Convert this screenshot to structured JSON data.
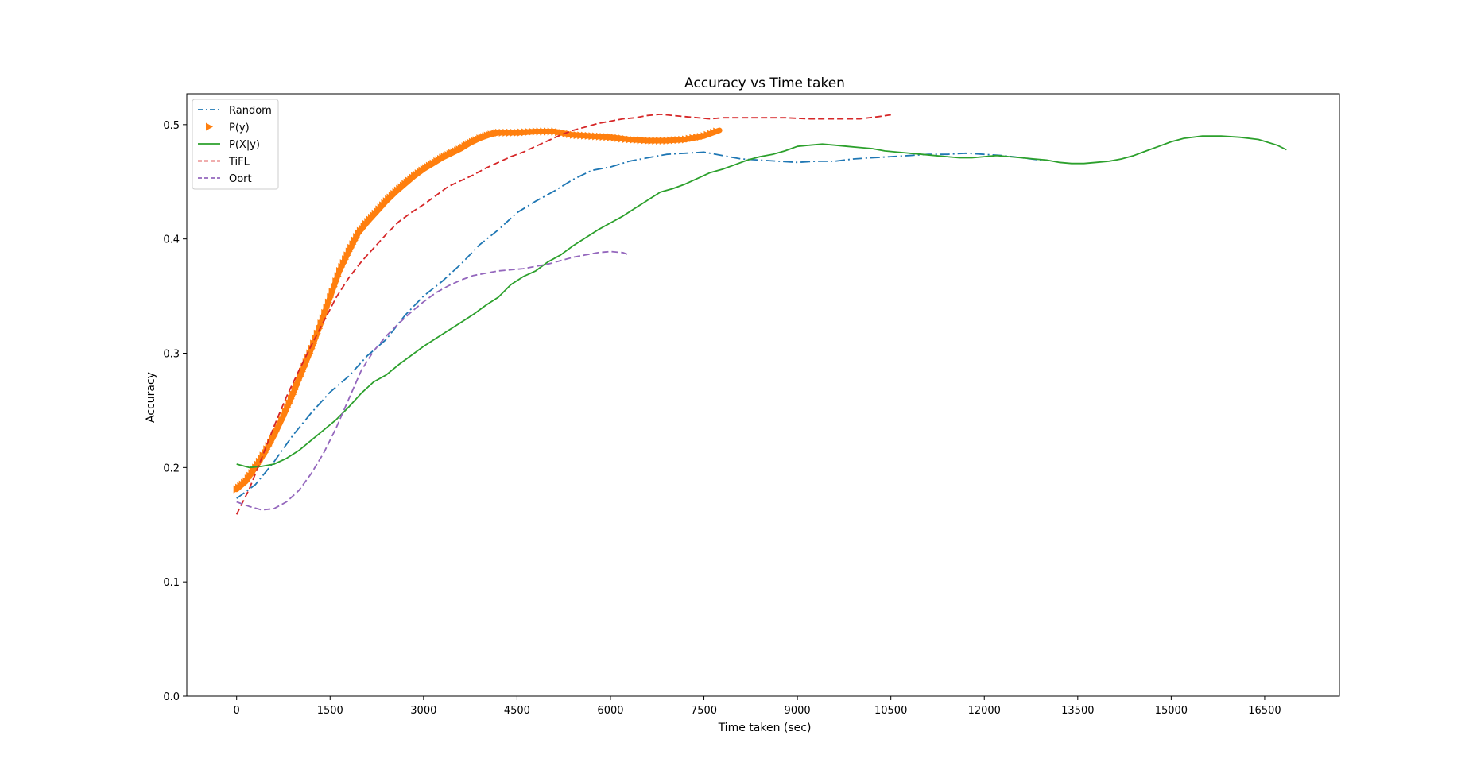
{
  "chart_data": {
    "type": "line",
    "title": "Accuracy vs Time taken",
    "xlabel": "Time taken (sec)",
    "ylabel": "Accuracy",
    "xlim": [
      -800,
      17700
    ],
    "ylim": [
      0,
      0.527
    ],
    "xticks": [
      0,
      1500,
      3000,
      4500,
      6000,
      7500,
      9000,
      10500,
      12000,
      13500,
      15000,
      16500
    ],
    "yticks": [
      0.0,
      0.1,
      0.2,
      0.3,
      0.4,
      0.5
    ],
    "grid": false,
    "legend_position": "top-left",
    "series": [
      {
        "name": "Random",
        "color": "#1f77b4",
        "style": "dashdot",
        "points": [
          [
            0,
            0.173
          ],
          [
            300,
            0.185
          ],
          [
            600,
            0.205
          ],
          [
            900,
            0.228
          ],
          [
            1200,
            0.248
          ],
          [
            1500,
            0.266
          ],
          [
            1800,
            0.28
          ],
          [
            2100,
            0.298
          ],
          [
            2400,
            0.312
          ],
          [
            2700,
            0.333
          ],
          [
            3000,
            0.35
          ],
          [
            3300,
            0.363
          ],
          [
            3600,
            0.378
          ],
          [
            3900,
            0.395
          ],
          [
            4200,
            0.408
          ],
          [
            4500,
            0.423
          ],
          [
            4800,
            0.433
          ],
          [
            5100,
            0.442
          ],
          [
            5400,
            0.452
          ],
          [
            5700,
            0.46
          ],
          [
            6000,
            0.463
          ],
          [
            6300,
            0.468
          ],
          [
            6600,
            0.471
          ],
          [
            6900,
            0.474
          ],
          [
            7200,
            0.475
          ],
          [
            7500,
            0.476
          ],
          [
            7800,
            0.473
          ],
          [
            8100,
            0.47
          ],
          [
            8400,
            0.469
          ],
          [
            8700,
            0.468
          ],
          [
            9000,
            0.467
          ],
          [
            9300,
            0.468
          ],
          [
            9600,
            0.468
          ],
          [
            9900,
            0.47
          ],
          [
            10200,
            0.471
          ],
          [
            10500,
            0.472
          ],
          [
            10800,
            0.473
          ],
          [
            11100,
            0.474
          ],
          [
            11400,
            0.474
          ],
          [
            11700,
            0.475
          ],
          [
            12000,
            0.474
          ],
          [
            12300,
            0.473
          ],
          [
            12600,
            0.471
          ],
          [
            12900,
            0.469
          ],
          [
            13000,
            0.469
          ]
        ]
      },
      {
        "name": "P(y)",
        "color": "#ff7f0e",
        "style": "marker-triangle-right",
        "points": [
          [
            0,
            0.181
          ],
          [
            150,
            0.188
          ],
          [
            300,
            0.2
          ],
          [
            450,
            0.213
          ],
          [
            600,
            0.228
          ],
          [
            750,
            0.245
          ],
          [
            900,
            0.264
          ],
          [
            1050,
            0.284
          ],
          [
            1200,
            0.304
          ],
          [
            1350,
            0.326
          ],
          [
            1500,
            0.349
          ],
          [
            1650,
            0.372
          ],
          [
            1800,
            0.389
          ],
          [
            1950,
            0.405
          ],
          [
            2100,
            0.415
          ],
          [
            2250,
            0.424
          ],
          [
            2400,
            0.433
          ],
          [
            2550,
            0.441
          ],
          [
            2700,
            0.448
          ],
          [
            2850,
            0.455
          ],
          [
            3000,
            0.461
          ],
          [
            3150,
            0.466
          ],
          [
            3300,
            0.471
          ],
          [
            3450,
            0.475
          ],
          [
            3600,
            0.479
          ],
          [
            3750,
            0.484
          ],
          [
            3900,
            0.488
          ],
          [
            4050,
            0.491
          ],
          [
            4200,
            0.493
          ],
          [
            4500,
            0.493
          ],
          [
            4800,
            0.494
          ],
          [
            5100,
            0.494
          ],
          [
            5400,
            0.491
          ],
          [
            5700,
            0.49
          ],
          [
            6000,
            0.489
          ],
          [
            6300,
            0.487
          ],
          [
            6600,
            0.486
          ],
          [
            6900,
            0.486
          ],
          [
            7200,
            0.487
          ],
          [
            7500,
            0.49
          ],
          [
            7750,
            0.495
          ]
        ]
      },
      {
        "name": "P(X|y)",
        "color": "#2ca02c",
        "style": "solid",
        "points": [
          [
            0,
            0.203
          ],
          [
            200,
            0.2
          ],
          [
            400,
            0.201
          ],
          [
            600,
            0.203
          ],
          [
            800,
            0.208
          ],
          [
            1000,
            0.215
          ],
          [
            1200,
            0.224
          ],
          [
            1400,
            0.233
          ],
          [
            1600,
            0.242
          ],
          [
            1800,
            0.253
          ],
          [
            2000,
            0.265
          ],
          [
            2200,
            0.275
          ],
          [
            2400,
            0.281
          ],
          [
            2600,
            0.29
          ],
          [
            2800,
            0.298
          ],
          [
            3000,
            0.306
          ],
          [
            3200,
            0.313
          ],
          [
            3400,
            0.32
          ],
          [
            3600,
            0.327
          ],
          [
            3800,
            0.334
          ],
          [
            4000,
            0.342
          ],
          [
            4200,
            0.349
          ],
          [
            4400,
            0.36
          ],
          [
            4600,
            0.367
          ],
          [
            4800,
            0.372
          ],
          [
            5000,
            0.38
          ],
          [
            5200,
            0.386
          ],
          [
            5400,
            0.394
          ],
          [
            5600,
            0.401
          ],
          [
            5800,
            0.408
          ],
          [
            6000,
            0.414
          ],
          [
            6200,
            0.42
          ],
          [
            6400,
            0.427
          ],
          [
            6600,
            0.434
          ],
          [
            6800,
            0.441
          ],
          [
            7000,
            0.444
          ],
          [
            7200,
            0.448
          ],
          [
            7400,
            0.453
          ],
          [
            7600,
            0.458
          ],
          [
            7800,
            0.461
          ],
          [
            8000,
            0.465
          ],
          [
            8200,
            0.469
          ],
          [
            8400,
            0.472
          ],
          [
            8600,
            0.474
          ],
          [
            8800,
            0.477
          ],
          [
            9000,
            0.481
          ],
          [
            9200,
            0.482
          ],
          [
            9400,
            0.483
          ],
          [
            9600,
            0.482
          ],
          [
            9800,
            0.481
          ],
          [
            10000,
            0.48
          ],
          [
            10200,
            0.479
          ],
          [
            10400,
            0.477
          ],
          [
            10600,
            0.476
          ],
          [
            10800,
            0.475
          ],
          [
            11000,
            0.474
          ],
          [
            11200,
            0.473
          ],
          [
            11400,
            0.472
          ],
          [
            11600,
            0.471
          ],
          [
            11800,
            0.471
          ],
          [
            12000,
            0.472
          ],
          [
            12200,
            0.473
          ],
          [
            12400,
            0.472
          ],
          [
            12600,
            0.471
          ],
          [
            12800,
            0.47
          ],
          [
            13000,
            0.469
          ],
          [
            13200,
            0.467
          ],
          [
            13400,
            0.466
          ],
          [
            13600,
            0.466
          ],
          [
            13800,
            0.467
          ],
          [
            14000,
            0.468
          ],
          [
            14200,
            0.47
          ],
          [
            14400,
            0.473
          ],
          [
            14600,
            0.477
          ],
          [
            14800,
            0.481
          ],
          [
            15000,
            0.485
          ],
          [
            15200,
            0.488
          ],
          [
            15500,
            0.49
          ],
          [
            15800,
            0.49
          ],
          [
            16100,
            0.489
          ],
          [
            16400,
            0.487
          ],
          [
            16700,
            0.482
          ],
          [
            16850,
            0.478
          ]
        ]
      },
      {
        "name": "TiFL",
        "color": "#d62728",
        "style": "dashed",
        "points": [
          [
            0,
            0.159
          ],
          [
            200,
            0.181
          ],
          [
            400,
            0.208
          ],
          [
            600,
            0.236
          ],
          [
            800,
            0.262
          ],
          [
            1000,
            0.285
          ],
          [
            1200,
            0.307
          ],
          [
            1400,
            0.328
          ],
          [
            1600,
            0.349
          ],
          [
            1800,
            0.366
          ],
          [
            2000,
            0.38
          ],
          [
            2200,
            0.392
          ],
          [
            2400,
            0.404
          ],
          [
            2600,
            0.415
          ],
          [
            2800,
            0.423
          ],
          [
            3000,
            0.43
          ],
          [
            3200,
            0.438
          ],
          [
            3400,
            0.446
          ],
          [
            3600,
            0.451
          ],
          [
            3800,
            0.456
          ],
          [
            4000,
            0.462
          ],
          [
            4200,
            0.467
          ],
          [
            4400,
            0.472
          ],
          [
            4600,
            0.476
          ],
          [
            4800,
            0.481
          ],
          [
            5000,
            0.486
          ],
          [
            5200,
            0.491
          ],
          [
            5400,
            0.495
          ],
          [
            5600,
            0.498
          ],
          [
            5800,
            0.501
          ],
          [
            6000,
            0.503
          ],
          [
            6200,
            0.505
          ],
          [
            6400,
            0.506
          ],
          [
            6600,
            0.508
          ],
          [
            6800,
            0.509
          ],
          [
            7000,
            0.508
          ],
          [
            7200,
            0.507
          ],
          [
            7400,
            0.506
          ],
          [
            7600,
            0.505
          ],
          [
            7800,
            0.506
          ],
          [
            8000,
            0.506
          ],
          [
            8400,
            0.506
          ],
          [
            8800,
            0.506
          ],
          [
            9200,
            0.505
          ],
          [
            9600,
            0.505
          ],
          [
            10000,
            0.505
          ],
          [
            10300,
            0.507
          ],
          [
            10550,
            0.509
          ]
        ]
      },
      {
        "name": "Oort",
        "color": "#9467bd",
        "style": "dashed",
        "points": [
          [
            0,
            0.17
          ],
          [
            200,
            0.166
          ],
          [
            400,
            0.163
          ],
          [
            600,
            0.164
          ],
          [
            800,
            0.17
          ],
          [
            1000,
            0.18
          ],
          [
            1200,
            0.195
          ],
          [
            1400,
            0.213
          ],
          [
            1600,
            0.235
          ],
          [
            1800,
            0.26
          ],
          [
            2000,
            0.285
          ],
          [
            2200,
            0.302
          ],
          [
            2400,
            0.315
          ],
          [
            2600,
            0.326
          ],
          [
            2800,
            0.336
          ],
          [
            3000,
            0.345
          ],
          [
            3200,
            0.353
          ],
          [
            3400,
            0.359
          ],
          [
            3600,
            0.364
          ],
          [
            3800,
            0.368
          ],
          [
            4000,
            0.37
          ],
          [
            4200,
            0.372
          ],
          [
            4400,
            0.373
          ],
          [
            4600,
            0.374
          ],
          [
            4800,
            0.376
          ],
          [
            5000,
            0.378
          ],
          [
            5200,
            0.381
          ],
          [
            5400,
            0.384
          ],
          [
            5600,
            0.386
          ],
          [
            5800,
            0.388
          ],
          [
            6000,
            0.389
          ],
          [
            6200,
            0.388
          ],
          [
            6300,
            0.386
          ]
        ]
      }
    ]
  }
}
